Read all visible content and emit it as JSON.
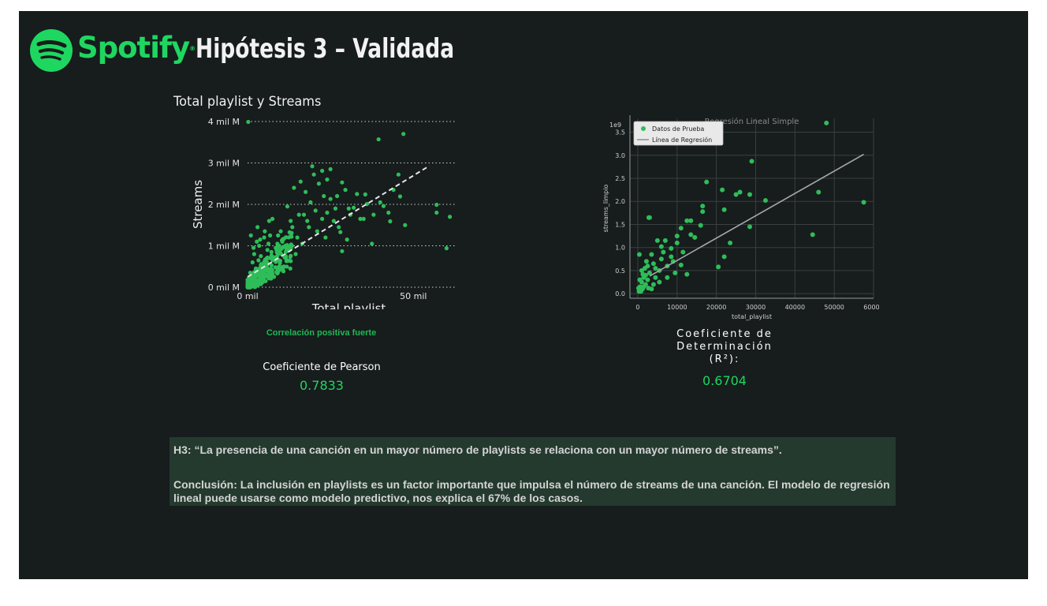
{
  "header": {
    "logo_text": "Spotify",
    "logo_mark": "®",
    "title": "Hipótesis 3 – Validada"
  },
  "colors": {
    "background": "#171c1d",
    "accent": "#1ed760",
    "point_green": "#2ebd59",
    "box": "#243a2f"
  },
  "icons": {
    "logo": "spotify-logo-icon"
  },
  "chart_data": [
    {
      "type": "scatter",
      "title": "Total playlist y Streams",
      "xlabel": "Total playlist",
      "ylabel": "Streams",
      "xlim": [
        0,
        63000
      ],
      "ylim": [
        0,
        4000000000
      ],
      "x_ticks": [
        {
          "value": 0,
          "label": "0 mil"
        },
        {
          "value": 50000,
          "label": "50 mil"
        }
      ],
      "y_ticks": [
        {
          "value": 0,
          "label": "0 mil M"
        },
        {
          "value": 1000000000,
          "label": "1 mil M"
        },
        {
          "value": 2000000000,
          "label": "2 mil M"
        },
        {
          "value": 3000000000,
          "label": "3 mil M"
        },
        {
          "value": 4000000000,
          "label": "4 mil M"
        }
      ],
      "grid": "horizontal dotted",
      "trend_line": {
        "x": [
          0,
          63000
        ],
        "y": [
          250000000,
          3330000000
        ],
        "style": "dashed"
      },
      "points": [
        [
          200,
          3990000000
        ],
        [
          39500,
          3570000000
        ],
        [
          47000,
          3700000000
        ],
        [
          61000,
          1700000000
        ],
        [
          60000,
          940000000
        ],
        [
          57000,
          1990000000
        ],
        [
          57000,
          1800000000
        ],
        [
          46000,
          2190000000
        ],
        [
          45500,
          2720000000
        ],
        [
          47500,
          1500000000
        ],
        [
          43000,
          1590000000
        ],
        [
          41000,
          1960000000
        ],
        [
          36000,
          2010000000
        ],
        [
          35500,
          2240000000
        ],
        [
          38000,
          1750000000
        ],
        [
          32000,
          1920000000
        ],
        [
          30000,
          1150000000
        ],
        [
          28000,
          1330000000
        ],
        [
          26500,
          1900000000
        ],
        [
          22500,
          1650000000
        ],
        [
          19500,
          2920000000
        ],
        [
          22500,
          2810000000
        ],
        [
          25000,
          2850000000
        ],
        [
          20000,
          2720000000
        ],
        [
          24000,
          2600000000
        ],
        [
          25000,
          2130000000
        ],
        [
          28500,
          2530000000
        ],
        [
          34000,
          1650000000
        ],
        [
          37500,
          1050000000
        ],
        [
          28500,
          870000000
        ],
        [
          14000,
          2400000000
        ],
        [
          16000,
          2550000000
        ],
        [
          17500,
          2300000000
        ],
        [
          17000,
          1750000000
        ],
        [
          12000,
          1950000000
        ],
        [
          13000,
          1600000000
        ],
        [
          10000,
          1350000000
        ],
        [
          15000,
          1200000000
        ],
        [
          9000,
          1050000000
        ],
        [
          11500,
          850000000
        ],
        [
          7500,
          1650000000
        ],
        [
          6500,
          1600000000
        ],
        [
          5000,
          1200000000
        ],
        [
          3500,
          1000000000
        ],
        [
          2000,
          800000000
        ],
        [
          1500,
          600000000
        ],
        [
          800,
          350000000
        ],
        [
          300,
          200000000
        ],
        [
          2500,
          450000000
        ],
        [
          4000,
          750000000
        ],
        [
          6000,
          900000000
        ],
        [
          8000,
          700000000
        ],
        [
          3000,
          1450000000
        ],
        [
          1000,
          1250000000
        ],
        [
          5500,
          500000000
        ],
        [
          7000,
          400000000
        ],
        [
          9500,
          650000000
        ],
        [
          11000,
          500000000
        ],
        [
          4500,
          300000000
        ],
        [
          2000,
          200000000
        ],
        [
          1200,
          100000000
        ],
        [
          600,
          50000000
        ],
        [
          3800,
          1150000000
        ],
        [
          5200,
          1350000000
        ],
        [
          6800,
          1250000000
        ],
        [
          10500,
          1100000000
        ],
        [
          12500,
          900000000
        ],
        [
          14500,
          800000000
        ],
        [
          16500,
          1050000000
        ],
        [
          18500,
          1450000000
        ],
        [
          21000,
          1350000000
        ],
        [
          23500,
          1200000000
        ],
        [
          26000,
          1600000000
        ],
        [
          29500,
          2350000000
        ],
        [
          31000,
          1750000000
        ],
        [
          33000,
          2250000000
        ],
        [
          35000,
          1650000000
        ],
        [
          40000,
          2050000000
        ],
        [
          42500,
          1800000000
        ],
        [
          44000,
          2350000000
        ],
        [
          1800,
          950000000
        ],
        [
          2800,
          1100000000
        ],
        [
          3300,
          650000000
        ],
        [
          4200,
          550000000
        ],
        [
          5800,
          700000000
        ],
        [
          6300,
          1050000000
        ],
        [
          7200,
          850000000
        ],
        [
          8500,
          950000000
        ],
        [
          9200,
          1250000000
        ],
        [
          13500,
          1450000000
        ],
        [
          15500,
          1750000000
        ],
        [
          18000,
          1600000000
        ],
        [
          19000,
          2050000000
        ],
        [
          21500,
          2500000000
        ],
        [
          23000,
          2200000000
        ],
        [
          27000,
          2200000000
        ],
        [
          30500,
          1900000000
        ],
        [
          24000,
          1800000000
        ],
        [
          27500,
          1450000000
        ],
        [
          20500,
          1850000000
        ]
      ],
      "annotation": "Correlación positiva fuerte",
      "metric_label": "Coeficiente de Pearson",
      "metric_value": "0.7833"
    },
    {
      "type": "scatter",
      "title": "Regresión Lineal Simple",
      "xlabel": "total_playlist",
      "ylabel": "streams_limpio",
      "offset_label": "1e9",
      "xlim": [
        -2000,
        60000
      ],
      "ylim": [
        -0.1,
        3.8
      ],
      "x_ticks": [
        "0",
        "10000",
        "20000",
        "30000",
        "40000",
        "50000",
        "60000"
      ],
      "y_ticks": [
        "0.0",
        "0.5",
        "1.0",
        "1.5",
        "2.0",
        "2.5",
        "3.0",
        "3.5"
      ],
      "grid": true,
      "legend": {
        "position": "top-left",
        "items": [
          "Datos de Prueba",
          "Línea de Regresión"
        ]
      },
      "regression_line": {
        "x": [
          3000,
          57500
        ],
        "y": [
          0.38,
          3.02
        ]
      },
      "points": [
        [
          48000,
          3.7
        ],
        [
          57500,
          1.98
        ],
        [
          46000,
          2.2
        ],
        [
          44500,
          1.28
        ],
        [
          32500,
          2.02
        ],
        [
          29000,
          2.87
        ],
        [
          28500,
          1.45
        ],
        [
          28500,
          2.15
        ],
        [
          26000,
          2.2
        ],
        [
          25000,
          2.15
        ],
        [
          23500,
          1.1
        ],
        [
          21500,
          2.25
        ],
        [
          22000,
          1.82
        ],
        [
          22000,
          0.8
        ],
        [
          20500,
          0.58
        ],
        [
          17500,
          2.42
        ],
        [
          16500,
          1.9
        ],
        [
          16500,
          1.78
        ],
        [
          16000,
          1.48
        ],
        [
          13500,
          1.28
        ],
        [
          13500,
          1.58
        ],
        [
          14500,
          1.22
        ],
        [
          12500,
          1.58
        ],
        [
          12500,
          0.42
        ],
        [
          11500,
          0.9
        ],
        [
          11000,
          0.62
        ],
        [
          11000,
          1.42
        ],
        [
          10000,
          1.25
        ],
        [
          10000,
          1.1
        ],
        [
          9500,
          0.45
        ],
        [
          9000,
          0.7
        ],
        [
          8500,
          0.8
        ],
        [
          8500,
          0.98
        ],
        [
          7500,
          0.6
        ],
        [
          7000,
          1.15
        ],
        [
          6500,
          0.9
        ],
        [
          6000,
          0.75
        ],
        [
          5500,
          0.5
        ],
        [
          5000,
          1.15
        ],
        [
          4500,
          0.35
        ],
        [
          4500,
          0.55
        ],
        [
          4000,
          0.2
        ],
        [
          3500,
          0.85
        ],
        [
          3000,
          1.65
        ],
        [
          2800,
          1.65
        ],
        [
          3000,
          0.45
        ],
        [
          2500,
          0.3
        ],
        [
          2500,
          0.6
        ],
        [
          2000,
          0.2
        ],
        [
          2000,
          0.4
        ],
        [
          1800,
          0.55
        ],
        [
          1500,
          0.15
        ],
        [
          1500,
          0.35
        ],
        [
          1200,
          0.1
        ],
        [
          1000,
          0.25
        ],
        [
          1000,
          0.5
        ],
        [
          800,
          0.05
        ],
        [
          600,
          0.15
        ],
        [
          500,
          0.3
        ],
        [
          400,
          0.85
        ],
        [
          300,
          0.05
        ],
        [
          200,
          0.12
        ],
        [
          3500,
          0.1
        ],
        [
          4000,
          0.65
        ],
        [
          6000,
          1.02
        ],
        [
          7500,
          0.35
        ],
        [
          5500,
          0.25
        ],
        [
          2200,
          0.7
        ],
        [
          1300,
          0.42
        ],
        [
          2700,
          0.12
        ]
      ],
      "metric_label_lines": [
        "Coeficiente de",
        "Determinación",
        "(R²):"
      ],
      "metric_value": "0.6704"
    }
  ],
  "hypothesis": {
    "statement": "H3: “La presencia de una canción en un mayor número de playlists se relaciona con un mayor número de streams”.",
    "conclusion": "Conclusión:   La inclusión en playlists es un factor importante que impulsa el número de streams de una canción. El modelo de regresión lineal puede usarse como modelo predictivo, nos explica el 67% de los casos."
  }
}
